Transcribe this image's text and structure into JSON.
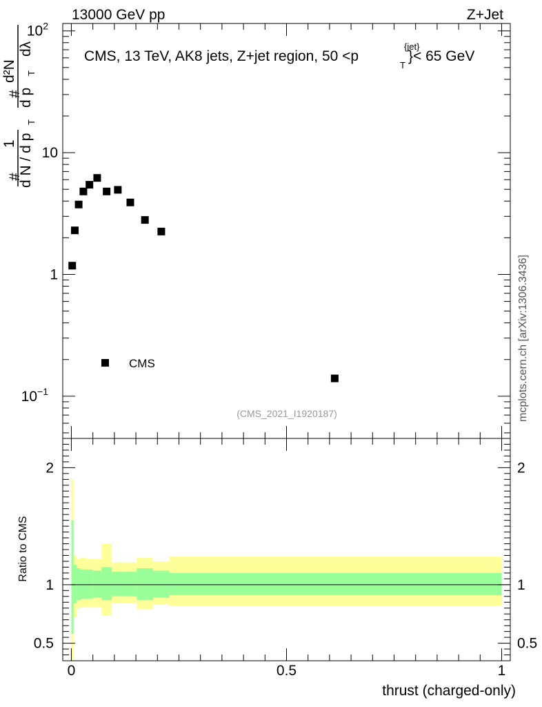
{
  "header": {
    "left": "13000 GeV pp",
    "right": "Z+Jet"
  },
  "side_label": "mcplots.cern.ch [arXiv:1306.3436]",
  "chart_data": [
    {
      "type": "scatter",
      "panel": "main",
      "title_prefix": "CMS, 13 TeV, AK8 jets, Z+jet region, 50 <p",
      "title_sup": "{jet}",
      "title_sub": "T",
      "title_suffix": "}< 65 GeV",
      "watermark": "(CMS_2021_I1920187)",
      "ylabel": {
        "num_left": "#",
        "one": "1",
        "den": "d N / d p",
        "den_sub": "T",
        "hash": "#",
        "d2N": "d²N",
        "dpt": "d p",
        "dpt_sub": "T",
        "dlambda": "dλ"
      },
      "yscale": "log",
      "ylim": [
        0.045,
        115
      ],
      "yticks": [
        {
          "value": 0.1,
          "base": "10",
          "exp": "−1"
        },
        {
          "value": 1,
          "base": "1",
          "exp": ""
        },
        {
          "value": 10,
          "base": "10",
          "exp": ""
        },
        {
          "value": 100,
          "base": "10",
          "exp": "2"
        }
      ],
      "xlim": [
        -0.02,
        1.02
      ],
      "series": [
        {
          "name": "CMS",
          "x": [
            0.002,
            0.008,
            0.017,
            0.028,
            0.042,
            0.06,
            0.082,
            0.108,
            0.137,
            0.171,
            0.209,
            0.612
          ],
          "y": [
            1.18,
            2.3,
            3.75,
            4.8,
            5.45,
            6.2,
            4.8,
            4.95,
            3.9,
            2.8,
            2.25,
            0.14
          ]
        }
      ],
      "legend": {
        "label": "CMS",
        "position": "lower-left"
      }
    },
    {
      "type": "area",
      "panel": "ratio",
      "ylabel": "Ratio to CMS",
      "xlabel": "thrust (charged-only)",
      "ylim": [
        0.35,
        2.25
      ],
      "yticks": [
        0.5,
        1,
        2
      ],
      "xticks": [
        0,
        0.5,
        1
      ],
      "x_edges": [
        0,
        0.005,
        0.012,
        0.022,
        0.035,
        0.05,
        0.07,
        0.094,
        0.122,
        0.152,
        0.19,
        0.228,
        1.0
      ],
      "inner_band": {
        "lo": [
          0.58,
          0.84,
          0.87,
          0.88,
          0.88,
          0.89,
          0.87,
          0.9,
          0.9,
          0.87,
          0.89,
          0.91
        ],
        "hi": [
          1.55,
          1.17,
          1.14,
          1.13,
          1.13,
          1.12,
          1.15,
          1.11,
          1.11,
          1.14,
          1.12,
          1.1
        ]
      },
      "outer_band": {
        "lo": [
          0.3,
          0.72,
          0.8,
          0.81,
          0.81,
          0.81,
          0.74,
          0.84,
          0.84,
          0.79,
          0.83,
          0.82
        ],
        "hi": [
          1.9,
          1.25,
          1.22,
          1.23,
          1.22,
          1.22,
          1.35,
          1.19,
          1.19,
          1.23,
          1.2,
          1.24
        ]
      },
      "reference_line": 1
    }
  ],
  "colors": {
    "inner_band": "#99ff99",
    "outer_band": "#ffff99",
    "watermark": "#999999",
    "axis": "#000000"
  }
}
